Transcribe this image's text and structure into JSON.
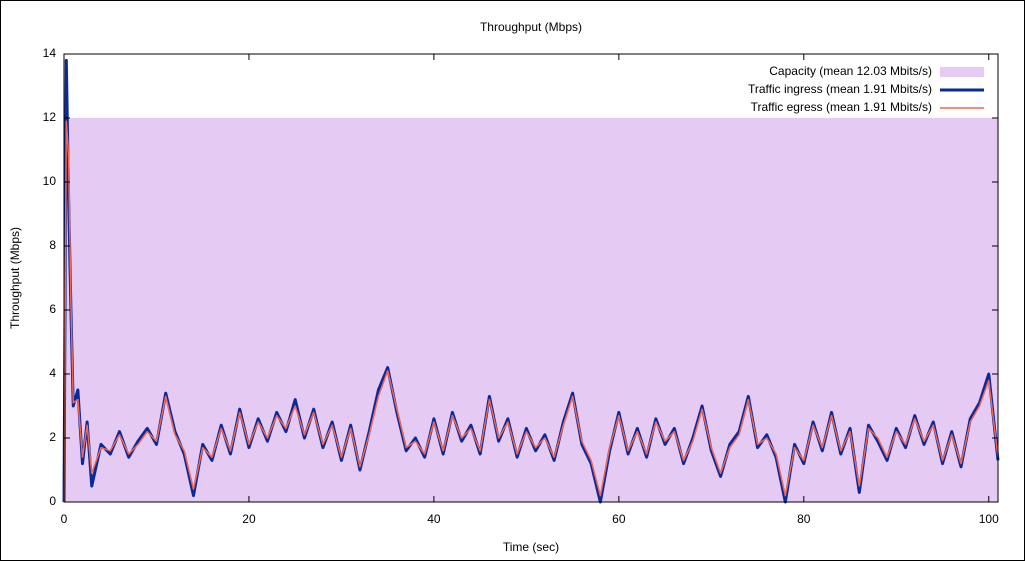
{
  "chart_data": {
    "type": "line",
    "title": "Throughput (Mbps)",
    "xlabel": "Time (sec)",
    "ylabel": "Throughput (Mbps)",
    "xlim": [
      0,
      101
    ],
    "ylim": [
      0,
      14
    ],
    "xticks": [
      0,
      20,
      40,
      60,
      80,
      100
    ],
    "yticks": [
      0,
      2,
      4,
      6,
      8,
      10,
      12,
      14
    ],
    "grid": false,
    "legend": "upper right",
    "x": [
      0,
      0.25,
      0.5,
      0.75,
      1,
      1.5,
      2,
      2.5,
      3,
      4,
      5,
      6,
      7,
      8,
      9,
      10,
      11,
      12,
      13,
      14,
      15,
      16,
      17,
      18,
      19,
      20,
      21,
      22,
      23,
      24,
      25,
      26,
      27,
      28,
      29,
      30,
      31,
      32,
      33,
      34,
      35,
      36,
      37,
      38,
      39,
      40,
      41,
      42,
      43,
      44,
      45,
      46,
      47,
      48,
      49,
      50,
      51,
      52,
      53,
      54,
      55,
      56,
      57,
      58,
      59,
      60,
      61,
      62,
      63,
      64,
      65,
      66,
      67,
      68,
      69,
      70,
      71,
      72,
      73,
      74,
      75,
      76,
      77,
      78,
      79,
      80,
      81,
      82,
      83,
      84,
      85,
      86,
      87,
      88,
      89,
      90,
      91,
      92,
      93,
      94,
      95,
      96,
      97,
      98,
      99,
      100,
      101
    ],
    "series": [
      {
        "name": "Capacity (mean 12.03 Mbits/s)",
        "style": "area",
        "color": "#e5cbf4",
        "x": [
          0,
          101
        ],
        "values": [
          12,
          12
        ]
      },
      {
        "name": "Traffic ingress (mean 1.91 Mbits/s)",
        "style": "line",
        "color": "#0a2a9c",
        "width": 3,
        "values": [
          0,
          13.8,
          9.5,
          6,
          3,
          3.5,
          1.2,
          2.5,
          0.5,
          1.8,
          1.5,
          2.2,
          1.4,
          1.9,
          2.3,
          1.8,
          3.4,
          2.2,
          1.5,
          0.2,
          1.8,
          1.3,
          2.4,
          1.5,
          2.9,
          1.7,
          2.6,
          1.9,
          2.8,
          2.2,
          3.2,
          2.0,
          2.9,
          1.7,
          2.5,
          1.3,
          2.4,
          1.0,
          2.2,
          3.5,
          4.2,
          2.8,
          1.6,
          2.0,
          1.4,
          2.6,
          1.5,
          2.8,
          1.9,
          2.4,
          1.5,
          3.3,
          1.9,
          2.6,
          1.4,
          2.3,
          1.6,
          2.1,
          1.3,
          2.5,
          3.4,
          1.8,
          1.2,
          0,
          1.6,
          2.8,
          1.5,
          2.3,
          1.4,
          2.6,
          1.8,
          2.3,
          1.2,
          2.0,
          3.0,
          1.6,
          0.8,
          1.8,
          2.2,
          3.3,
          1.7,
          2.1,
          1.4,
          0,
          1.8,
          1.2,
          2.5,
          1.6,
          2.8,
          1.5,
          2.3,
          0.3,
          2.4,
          1.9,
          1.3,
          2.3,
          1.7,
          2.7,
          1.8,
          2.5,
          1.2,
          2.2,
          1.1,
          2.6,
          3.1,
          4.0,
          1.3
        ]
      },
      {
        "name": "Traffic egress (mean 1.91 Mbits/s)",
        "style": "line",
        "color": "#f4664f",
        "width": 1.5,
        "values": [
          0,
          11.9,
          10.8,
          6.2,
          3.1,
          3.2,
          1.4,
          2.4,
          0.9,
          1.7,
          1.6,
          2.1,
          1.5,
          1.8,
          2.2,
          1.9,
          3.3,
          2.1,
          1.6,
          0.4,
          1.7,
          1.4,
          2.3,
          1.6,
          2.8,
          1.8,
          2.5,
          2.0,
          2.7,
          2.3,
          3.0,
          2.1,
          2.8,
          1.8,
          2.4,
          1.4,
          2.3,
          1.1,
          2.1,
          3.3,
          4.1,
          2.9,
          1.7,
          1.9,
          1.5,
          2.5,
          1.6,
          2.7,
          2.0,
          2.3,
          1.6,
          3.2,
          2.0,
          2.5,
          1.5,
          2.2,
          1.7,
          2.0,
          1.4,
          2.4,
          3.3,
          1.9,
          1.3,
          0.2,
          1.7,
          2.7,
          1.6,
          2.2,
          1.5,
          2.5,
          1.9,
          2.2,
          1.3,
          1.9,
          2.9,
          1.7,
          0.9,
          1.7,
          2.1,
          3.2,
          1.8,
          2.0,
          1.5,
          0.2,
          1.7,
          1.3,
          2.4,
          1.7,
          2.7,
          1.6,
          2.2,
          0.5,
          2.3,
          2.0,
          1.4,
          2.2,
          1.8,
          2.6,
          1.9,
          2.4,
          1.3,
          2.1,
          1.2,
          2.5,
          3.0,
          3.8,
          1.4
        ]
      }
    ]
  }
}
